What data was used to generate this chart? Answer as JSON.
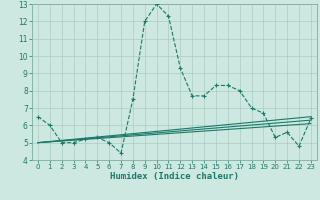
{
  "title": "",
  "xlabel": "Humidex (Indice chaleur)",
  "bg_color": "#cce8e0",
  "grid_color": "#aaccc4",
  "line_color": "#1a7a6a",
  "xlim": [
    -0.5,
    23.5
  ],
  "ylim": [
    4,
    13
  ],
  "yticks": [
    4,
    5,
    6,
    7,
    8,
    9,
    10,
    11,
    12,
    13
  ],
  "xticks": [
    0,
    1,
    2,
    3,
    4,
    5,
    6,
    7,
    8,
    9,
    10,
    11,
    12,
    13,
    14,
    15,
    16,
    17,
    18,
    19,
    20,
    21,
    22,
    23
  ],
  "main_series": {
    "x": [
      0,
      1,
      2,
      3,
      4,
      5,
      6,
      7,
      8,
      9,
      10,
      11,
      12,
      13,
      14,
      15,
      16,
      17,
      18,
      19,
      20,
      21,
      22,
      23
    ],
    "y": [
      6.5,
      6.0,
      5.0,
      5.0,
      5.2,
      5.3,
      5.0,
      4.4,
      7.5,
      12.0,
      13.0,
      12.3,
      9.3,
      7.7,
      7.7,
      8.3,
      8.3,
      8.0,
      7.0,
      6.7,
      5.3,
      5.6,
      4.8,
      6.4
    ]
  },
  "linear_series": [
    {
      "x": [
        0,
        23
      ],
      "y": [
        5.0,
        6.1
      ]
    },
    {
      "x": [
        0,
        23
      ],
      "y": [
        5.0,
        6.3
      ]
    },
    {
      "x": [
        0,
        23
      ],
      "y": [
        5.0,
        6.5
      ]
    }
  ]
}
